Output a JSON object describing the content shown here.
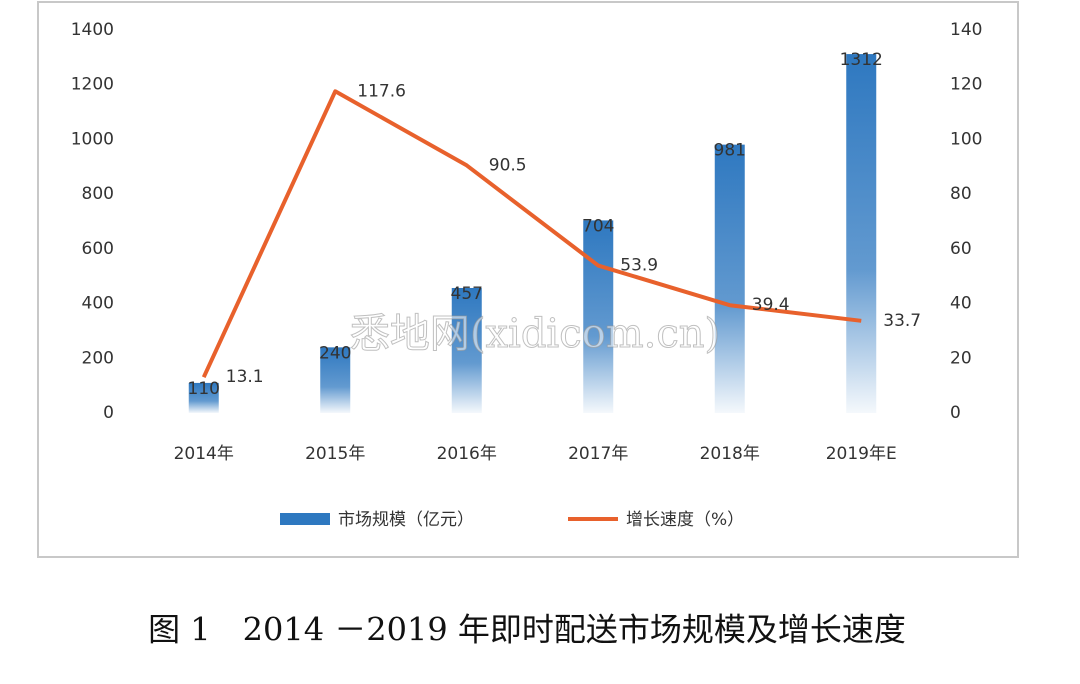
{
  "chart_data": {
    "type": "bar_line",
    "categories": [
      "2014年",
      "2015年",
      "2016年",
      "2017年",
      "2018年",
      "2019年E"
    ],
    "series": [
      {
        "name": "市场规模（亿元）",
        "type": "bar",
        "color": "#2e78c0",
        "values": [
          110,
          240,
          457,
          704,
          981,
          1312
        ]
      },
      {
        "name": "增长速度（%）",
        "type": "line",
        "axis": "y2",
        "color": "#e8612c",
        "values": [
          13.1,
          117.6,
          90.5,
          53.9,
          39.4,
          33.7
        ]
      }
    ],
    "ylim": [
      0,
      1400
    ],
    "yticks": [
      0,
      200,
      400,
      600,
      800,
      1000,
      1200,
      1400
    ],
    "y2lim": [
      0,
      140
    ],
    "y2ticks": [
      0,
      20,
      40,
      60,
      80,
      100,
      120,
      140
    ],
    "grid": false,
    "legend": "bottom",
    "watermark": "悉地网(xidicom.cn)",
    "caption": "图 1　2014 －2019 年即时配送市场规模及增长速度"
  }
}
